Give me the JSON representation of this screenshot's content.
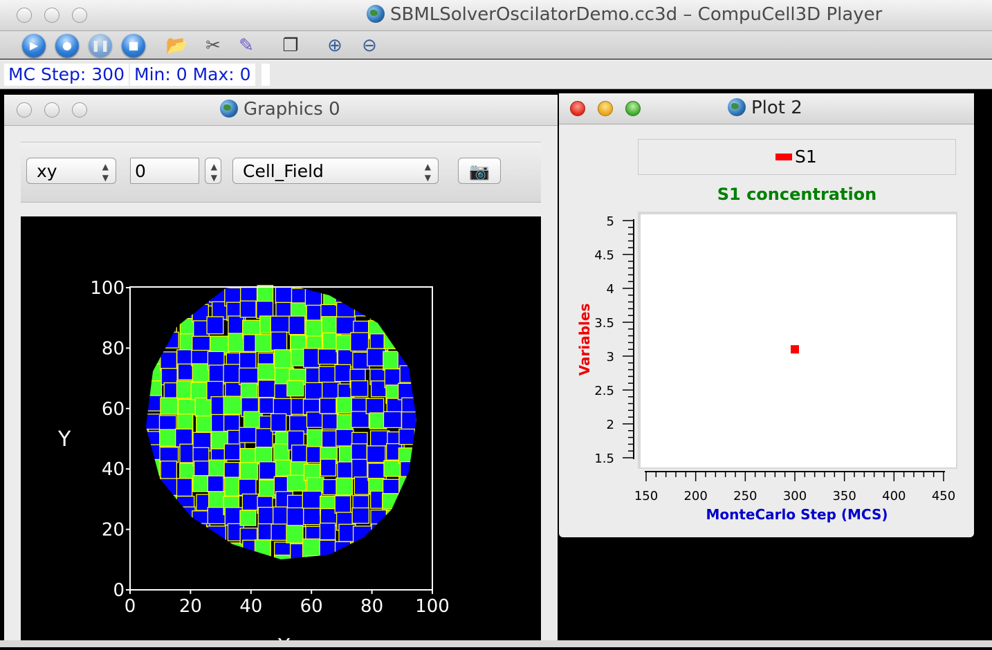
{
  "main_window": {
    "title": "SBMLSolverOscilatorDemo.cc3d – CompuCell3D Player"
  },
  "toolbar": {
    "buttons": [
      "play-icon",
      "step-icon",
      "pause-icon",
      "stop-icon",
      "open-folder-icon",
      "tools-icon",
      "edit-pencil-icon",
      "windows-icon",
      "zoom-in-icon",
      "zoom-out-icon"
    ]
  },
  "status": {
    "mc_step": "MC Step: 300",
    "min_max": "Min: 0 Max: 0"
  },
  "graphics_window": {
    "title": "Graphics 0",
    "projection": "xy",
    "slice_value": "0",
    "field": "Cell_Field",
    "axis_y_label": "Y",
    "axis_x_label": "X",
    "x_ticks": [
      "0",
      "20",
      "40",
      "60",
      "80",
      "100"
    ],
    "y_ticks": [
      "0",
      "20",
      "40",
      "60",
      "80",
      "100"
    ],
    "colors": {
      "cell_a": "#0000ff",
      "cell_b": "#44ff2e",
      "border": "#ffff00",
      "background": "#000000"
    }
  },
  "plot_window": {
    "title": "Plot 2"
  },
  "chart_data": {
    "type": "scatter",
    "title": "S1 concentration",
    "xlabel": "MonteCarlo Step (MCS)",
    "ylabel": "Variables",
    "xlim": [
      150,
      450
    ],
    "ylim": [
      1.5,
      5
    ],
    "x_ticks": [
      "150",
      "200",
      "250",
      "300",
      "350",
      "400",
      "450"
    ],
    "y_ticks": [
      "1.5",
      "2",
      "2.5",
      "3",
      "3.5",
      "4",
      "4.5",
      "5"
    ],
    "legend_position": "top",
    "series": [
      {
        "name": "S1",
        "color": "#ff0000",
        "x": [
          300
        ],
        "y": [
          3.1
        ]
      }
    ],
    "colors": {
      "title": "#008000",
      "xlabel": "#0000cc",
      "ylabel": "#ee0000"
    }
  }
}
